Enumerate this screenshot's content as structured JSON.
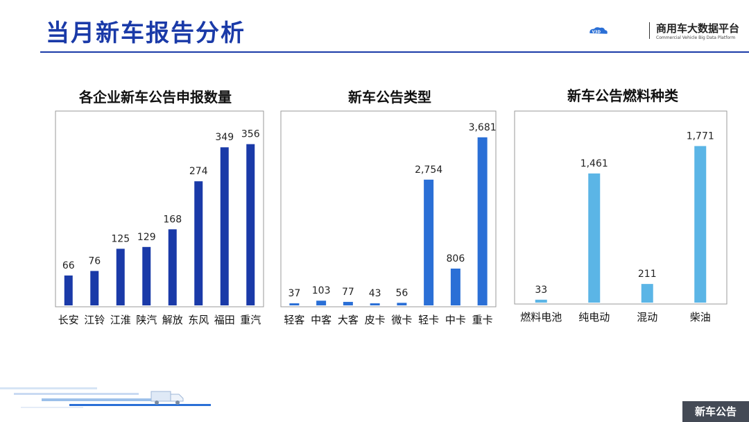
{
  "page": {
    "title": "当月新车报告分析",
    "logo_cn": "商用车大数据平台",
    "logo_en": "Commercial Vehicle Big Data Platform",
    "logo_mark": "V3D",
    "footer_tag": "新车公告"
  },
  "colors": {
    "title": "#1a3aa8",
    "chart1_bar": "#1a3aa8",
    "chart2_bar": "#2a6fd6",
    "chart3_bar": "#5bb5e6"
  },
  "chart_data": [
    {
      "type": "bar",
      "title": "各企业新车公告申报数量",
      "categories": [
        "长安",
        "江铃",
        "江淮",
        "陕汽",
        "解放",
        "东风",
        "福田",
        "重汽"
      ],
      "values": [
        66,
        76,
        125,
        129,
        168,
        274,
        349,
        356
      ],
      "value_labels": [
        "66",
        "76",
        "125",
        "129",
        "168",
        "274",
        "349",
        "356"
      ],
      "ylim": [
        0,
        380
      ]
    },
    {
      "type": "bar",
      "title": "新车公告类型",
      "categories": [
        "轻客",
        "中客",
        "大客",
        "皮卡",
        "微卡",
        "轻卡",
        "中卡",
        "重卡"
      ],
      "values": [
        37,
        103,
        77,
        43,
        56,
        2754,
        806,
        3681
      ],
      "value_labels": [
        "37",
        "103",
        "77",
        "43",
        "56",
        "2,754",
        "806",
        "3,681"
      ],
      "ylim": [
        0,
        3800
      ]
    },
    {
      "type": "bar",
      "title": "新车公告燃料种类",
      "categories": [
        "燃料电池",
        "纯电动",
        "混动",
        "柴油"
      ],
      "values": [
        33,
        1461,
        211,
        1771
      ],
      "value_labels": [
        "33",
        "1,461",
        "211",
        "1,771"
      ],
      "ylim": [
        0,
        1900
      ]
    }
  ]
}
